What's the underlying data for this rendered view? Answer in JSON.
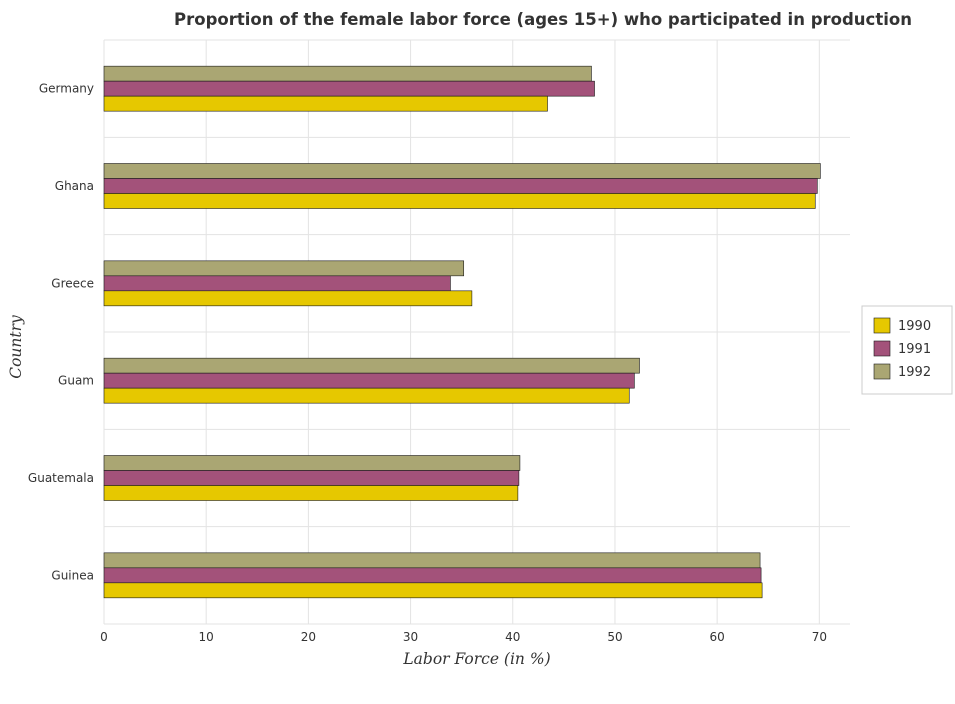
{
  "chart_data": {
    "type": "bar",
    "orientation": "horizontal",
    "title": "Proportion of the female labor force (ages 15+) who participated in production",
    "xlabel": "Labor Force (in %)",
    "ylabel": "Country",
    "xlim": [
      0,
      73
    ],
    "xticks": [
      0,
      10,
      20,
      30,
      40,
      50,
      60,
      70
    ],
    "grid": true,
    "legend_position": "right",
    "categories": [
      "Germany",
      "Ghana",
      "Greece",
      "Guam",
      "Guatemala",
      "Guinea"
    ],
    "series": [
      {
        "name": "1990",
        "color": "#e6c800",
        "values": [
          43.4,
          69.6,
          36.0,
          51.4,
          40.5,
          64.4
        ]
      },
      {
        "name": "1991",
        "color": "#a3527a",
        "values": [
          48.0,
          69.8,
          33.9,
          51.9,
          40.6,
          64.3
        ]
      },
      {
        "name": "1992",
        "color": "#aaa673",
        "values": [
          47.7,
          70.1,
          35.2,
          52.4,
          40.7,
          64.2
        ]
      }
    ]
  }
}
